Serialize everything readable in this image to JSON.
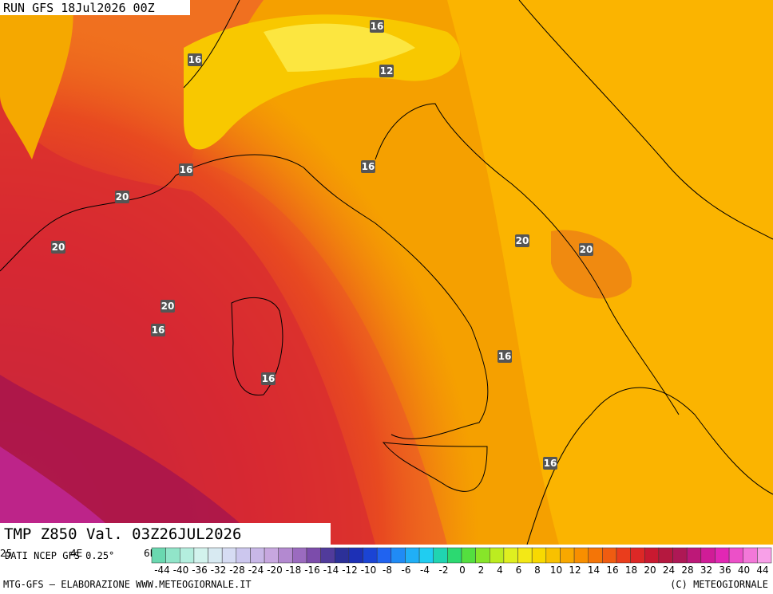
{
  "header": {
    "run": "RUN GFS 18Jul2026 00Z"
  },
  "map": {
    "contour_labels": [
      "16",
      "16",
      "12",
      "16",
      "16",
      "20",
      "20",
      "20",
      "20",
      "20",
      "16",
      "16",
      "16",
      "16"
    ]
  },
  "footer": {
    "field": "TMP Z850 Val. 03Z26JUL2026",
    "source": "DATI NCEP GFS 0.25°",
    "axis_fragments": [
      "25",
      "4E",
      "6E"
    ],
    "credit": "MTG-GFS — ELABORAZIONE WWW.METEOGIORNALE.IT",
    "copyright": "(C) METEOGIORNALE"
  },
  "colorbar": {
    "labels": [
      "-44",
      "-40",
      "-36",
      "-32",
      "-28",
      "-24",
      "-20",
      "-18",
      "-16",
      "-14",
      "-12",
      "-10",
      "-8",
      "-6",
      "-4",
      "-2",
      "0",
      "2",
      "4",
      "6",
      "8",
      "10",
      "12",
      "14",
      "16",
      "18",
      "20",
      "24",
      "28",
      "32",
      "36",
      "40",
      "44"
    ]
  }
}
